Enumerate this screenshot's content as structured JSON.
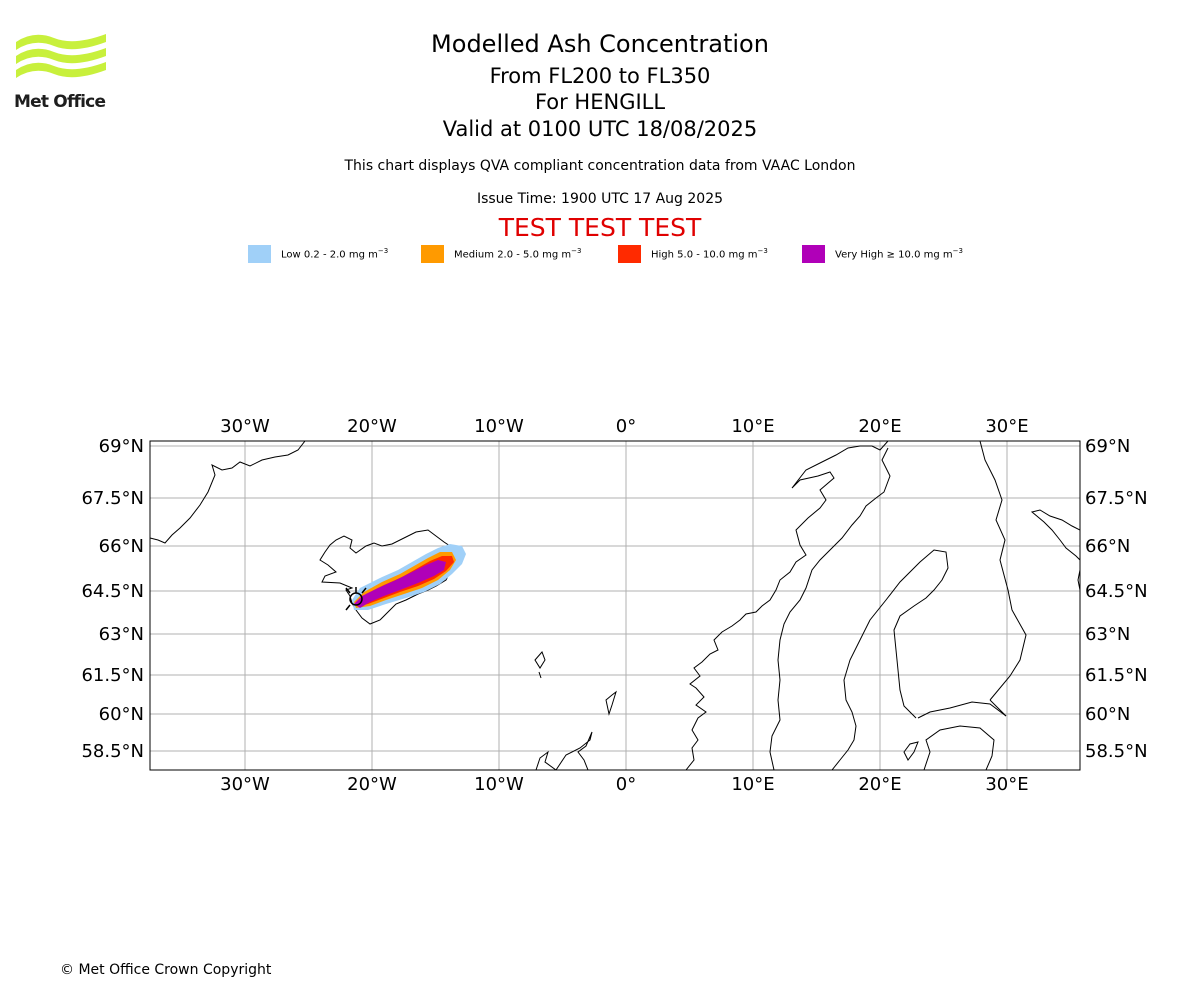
{
  "header": {
    "org_name": "Met Office",
    "title": "Modelled Ash Concentration",
    "levels": "From FL200 to FL350",
    "volcano": "For HENGILL",
    "valid": "Valid at 0100 UTC 18/08/2025",
    "note": "This chart displays QVA compliant concentration data from VAAC London",
    "issue": "Issue Time: 1900 UTC 17 Aug 2025",
    "test_banner": "TEST TEST TEST"
  },
  "legend": [
    {
      "name": "Low",
      "range": "0.2 - 2.0",
      "unit": "mg m",
      "exp": "−3",
      "color": "#a0d0f8"
    },
    {
      "name": "Medium",
      "range": "2.0 - 5.0",
      "unit": "mg m",
      "exp": "−3",
      "color": "#ff9a00"
    },
    {
      "name": "High",
      "range": "5.0 - 10.0",
      "unit": "mg m",
      "exp": "−3",
      "color": "#ff2a00"
    },
    {
      "name": "Very High",
      "range": "≥  10.0",
      "unit": "mg m",
      "exp": "−3",
      "color": "#b000b8"
    }
  ],
  "map": {
    "lon_ticks": [
      "30°W",
      "20°W",
      "10°W",
      "0°",
      "10°E",
      "20°E",
      "30°E"
    ],
    "lat_ticks": [
      "69°N",
      "67.5°N",
      "66°N",
      "64.5°N",
      "63°N",
      "61.5°N",
      "60°N",
      "58.5°N"
    ],
    "grid_color": "#b0b0b0",
    "coast_color": "#000000"
  },
  "footer": {
    "copyright": "© Met Office Crown Copyright"
  }
}
